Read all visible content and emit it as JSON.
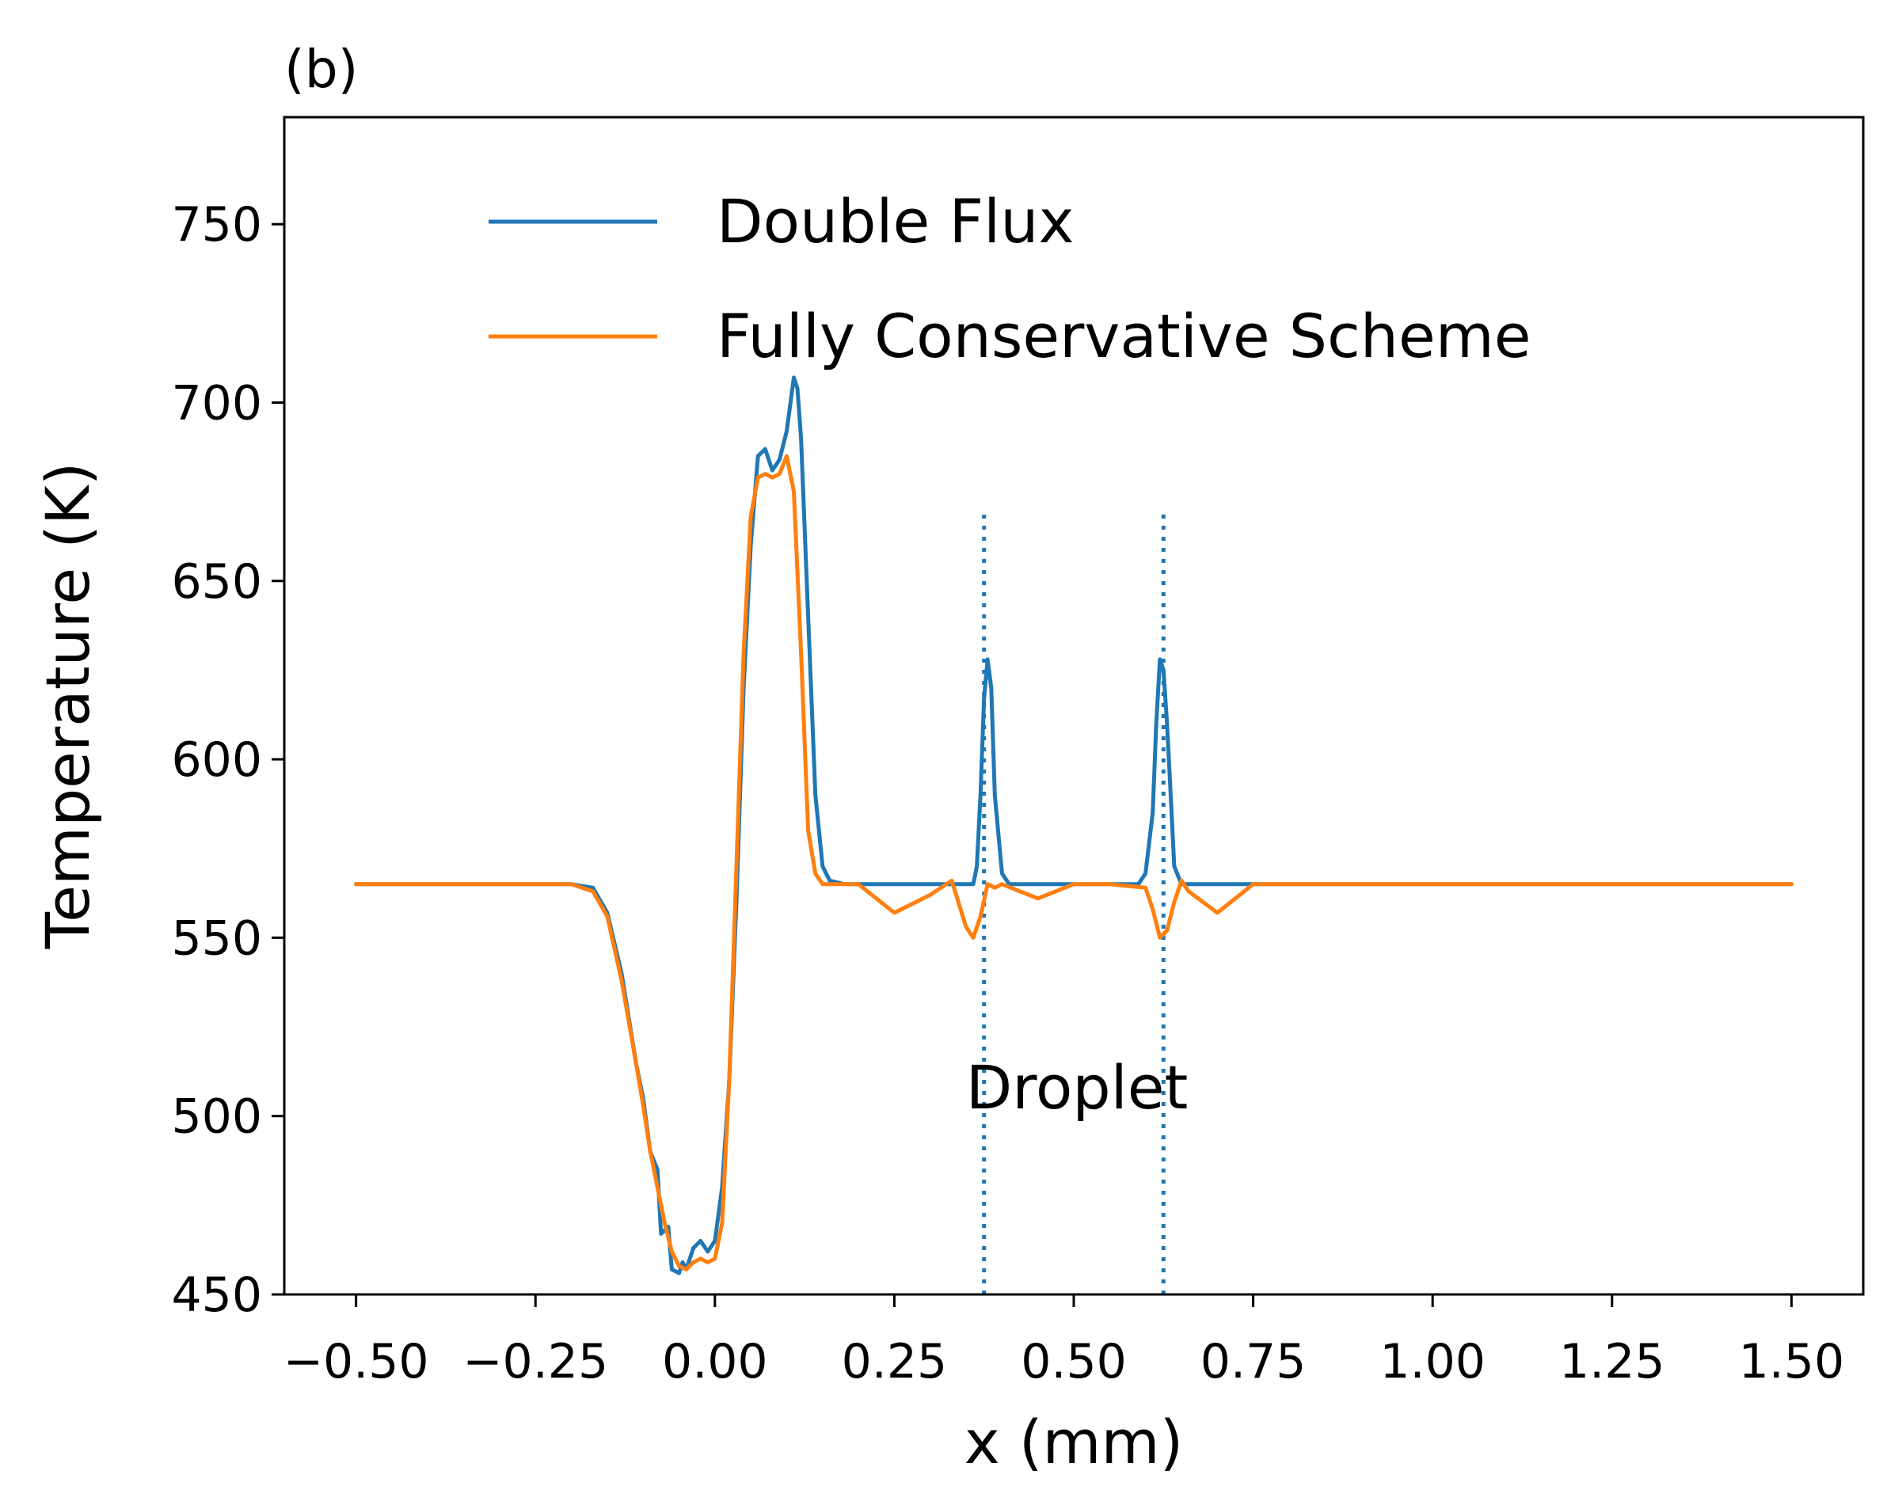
{
  "chart_data": {
    "type": "line",
    "title": "(b)",
    "xlabel": "x (mm)",
    "ylabel": "Temperature (K)",
    "xlim": [
      -0.6,
      1.6
    ],
    "ylim": [
      450,
      780
    ],
    "xticks": [
      -0.5,
      -0.25,
      0.0,
      0.25,
      0.5,
      0.75,
      1.0,
      1.25,
      1.5
    ],
    "xtick_labels": [
      "−0.50",
      "−0.25",
      "0.00",
      "0.25",
      "0.50",
      "0.75",
      "1.00",
      "1.25",
      "1.50"
    ],
    "yticks": [
      450,
      500,
      550,
      600,
      650,
      700,
      750
    ],
    "ytick_labels": [
      "450",
      "500",
      "550",
      "600",
      "650",
      "700",
      "750"
    ],
    "grid": false,
    "legend_position": "top-right",
    "annotation": "Droplet",
    "vlines": [
      {
        "x": 0.375,
        "y_range": [
          450,
          670
        ],
        "style": "dotted",
        "color": "#1f77b4"
      },
      {
        "x": 0.625,
        "y_range": [
          450,
          670
        ],
        "style": "dotted",
        "color": "#1f77b4"
      }
    ],
    "series": [
      {
        "name": "Double Flux",
        "color": "#1f77b4",
        "x": [
          -0.5,
          -0.2,
          -0.17,
          -0.15,
          -0.13,
          -0.11,
          -0.1,
          -0.09,
          -0.08,
          -0.075,
          -0.065,
          -0.06,
          -0.05,
          -0.045,
          -0.04,
          -0.035,
          -0.03,
          -0.02,
          -0.01,
          0.0,
          0.01,
          0.02,
          0.03,
          0.04,
          0.05,
          0.06,
          0.07,
          0.08,
          0.09,
          0.1,
          0.11,
          0.115,
          0.12,
          0.13,
          0.14,
          0.15,
          0.16,
          0.18,
          0.2,
          0.3,
          0.36,
          0.365,
          0.37,
          0.375,
          0.38,
          0.385,
          0.39,
          0.4,
          0.41,
          0.5,
          0.59,
          0.6,
          0.61,
          0.615,
          0.62,
          0.625,
          0.63,
          0.635,
          0.64,
          0.65,
          0.7,
          1.0,
          1.5
        ],
        "values": [
          565,
          565,
          564,
          557,
          540,
          515,
          505,
          490,
          485,
          467,
          469,
          457,
          456,
          459,
          457,
          460,
          463,
          465,
          462,
          465,
          480,
          510,
          560,
          620,
          660,
          685,
          687,
          681,
          684,
          692,
          707,
          704,
          690,
          640,
          590,
          570,
          566,
          565,
          565,
          565,
          565,
          570,
          590,
          617,
          628,
          620,
          590,
          568,
          565,
          565,
          565,
          568,
          585,
          610,
          628,
          625,
          610,
          590,
          570,
          565,
          565,
          565,
          565
        ]
      },
      {
        "name": "Fully Conservative Scheme",
        "color": "#ff7f0e",
        "x": [
          -0.5,
          -0.2,
          -0.17,
          -0.15,
          -0.13,
          -0.11,
          -0.1,
          -0.09,
          -0.08,
          -0.07,
          -0.06,
          -0.05,
          -0.04,
          -0.03,
          -0.02,
          -0.01,
          0.0,
          0.01,
          0.02,
          0.03,
          0.04,
          0.05,
          0.06,
          0.07,
          0.08,
          0.09,
          0.1,
          0.11,
          0.12,
          0.13,
          0.14,
          0.15,
          0.16,
          0.18,
          0.2,
          0.25,
          0.3,
          0.33,
          0.35,
          0.36,
          0.37,
          0.38,
          0.39,
          0.4,
          0.45,
          0.5,
          0.55,
          0.6,
          0.61,
          0.62,
          0.63,
          0.64,
          0.65,
          0.66,
          0.7,
          0.75,
          1.0,
          1.5
        ],
        "values": [
          565,
          565,
          563,
          556,
          538,
          515,
          503,
          490,
          480,
          470,
          462,
          458,
          457,
          459,
          460,
          459,
          460,
          470,
          510,
          570,
          630,
          668,
          679,
          680,
          679,
          680,
          685,
          675,
          630,
          580,
          568,
          565,
          565,
          565,
          565,
          557,
          562,
          566,
          553,
          550,
          556,
          565,
          564,
          565,
          561,
          565,
          565,
          564,
          558,
          550,
          552,
          560,
          566,
          563,
          557,
          565,
          565,
          565
        ]
      }
    ]
  }
}
